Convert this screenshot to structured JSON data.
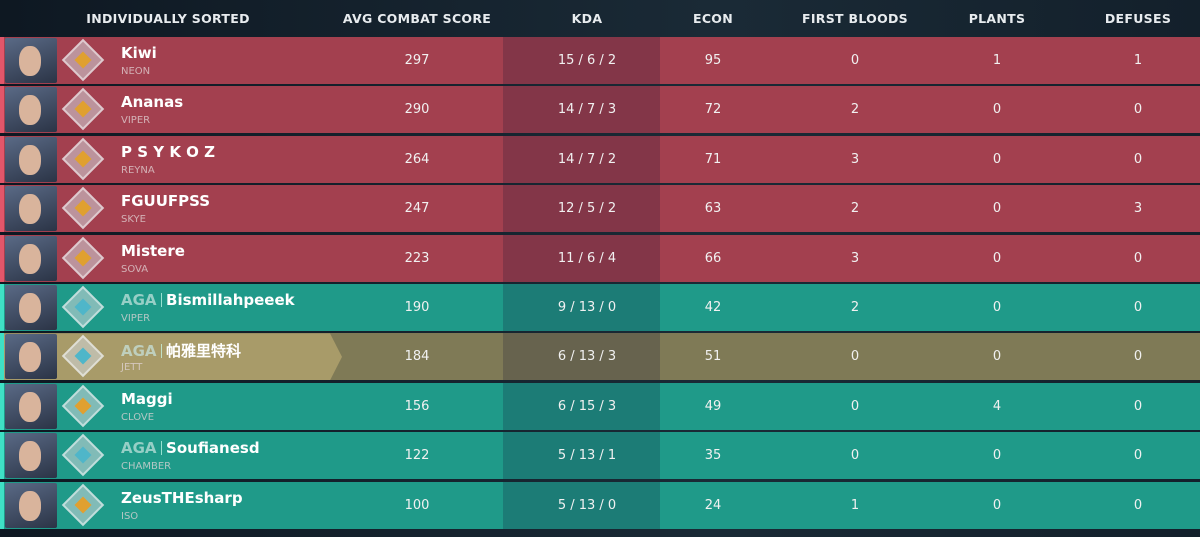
{
  "header": {
    "columns": [
      "INDIVIDUALLY SORTED",
      "AVG COMBAT SCORE",
      "KDA",
      "ECON",
      "FIRST BLOODS",
      "PLANTS",
      "DEFUSES"
    ]
  },
  "rows": [
    {
      "name": "Kiwi",
      "agent": "NEON",
      "color": "#a3404f",
      "stats": [
        297,
        "15 / 6 / 2",
        95,
        0,
        1,
        1
      ]
    },
    {
      "name": "Ananas",
      "agent": "VIPER",
      "color": "#a3404f",
      "stats": [
        290,
        "14 / 7 / 3",
        72,
        2,
        0,
        0
      ]
    },
    {
      "name": "P S Y K O Z",
      "agent": "REYNA",
      "color": "#a3404f",
      "stats": [
        264,
        "14 / 7 / 2",
        71,
        3,
        0,
        0
      ]
    },
    {
      "name": "FGUUFPSS",
      "agent": "SKYE",
      "color": "#a3404f",
      "stats": [
        247,
        "12 / 5 / 2",
        63,
        2,
        0,
        3
      ]
    },
    {
      "name": "Mistere",
      "agent": "SOVA",
      "color": "#a3404f",
      "stats": [
        223,
        "11 / 6 / 4",
        66,
        3,
        0,
        0
      ]
    },
    {
      "tag": "AGA",
      "name": "Bismillahpeeek",
      "agent": "VIPER",
      "color": "#1f9a89",
      "stats": [
        190,
        "9 / 13 / 0",
        42,
        2,
        0,
        0
      ]
    },
    {
      "tag": "AGA",
      "name": "帕雅里特科",
      "agent": "JETT",
      "color": "#7f7a56",
      "highlight": true,
      "stats": [
        184,
        "6 / 13 / 3",
        51,
        0,
        0,
        0
      ]
    },
    {
      "name": "Maggi",
      "agent": "CLOVE",
      "color": "#1f9a89",
      "stats": [
        156,
        "6 / 15 / 3",
        49,
        0,
        4,
        0
      ]
    },
    {
      "tag": "AGA",
      "name": "Soufianesd",
      "agent": "CHAMBER",
      "color": "#1f9a89",
      "stats": [
        122,
        "5 / 13 / 1",
        35,
        0,
        0,
        0
      ]
    },
    {
      "name": "ZeusTHEsharp",
      "agent": "ISO",
      "color": "#1f9a89",
      "stats": [
        100,
        "5 / 13 / 0",
        24,
        1,
        0,
        0
      ]
    }
  ]
}
